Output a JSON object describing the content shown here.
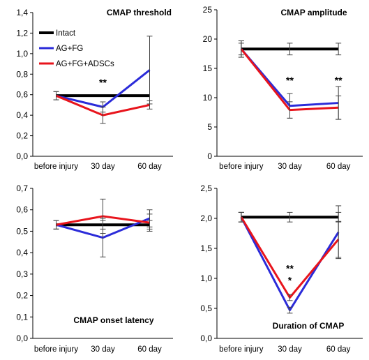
{
  "colors": {
    "Intact": "#000000",
    "AG+FG": "#2b2bd9",
    "AG+FG+ADSCs": "#e8141c"
  },
  "legend": [
    "Intact",
    "AG+FG",
    "AG+FG+ADSCs"
  ],
  "chart_data": [
    {
      "type": "line",
      "title": "CMAP threshold",
      "categories": [
        "before injury",
        "30 day",
        "60 day"
      ],
      "ylim": [
        0,
        1.4
      ],
      "yticks": [
        "0,0",
        "0,2",
        "0,4",
        "0,6",
        "0,8",
        "1,0",
        "1,2",
        "1,4"
      ],
      "series": [
        {
          "name": "Intact",
          "values": [
            0.59,
            0.59,
            0.59
          ],
          "err": [
            0.0,
            0.0,
            0.0
          ]
        },
        {
          "name": "AG+FG",
          "values": [
            0.59,
            0.48,
            0.84
          ],
          "err": [
            0.04,
            0.05,
            0.33
          ]
        },
        {
          "name": "AG+FG+ADSCs",
          "values": [
            0.59,
            0.4,
            0.5
          ],
          "err": [
            0.04,
            0.08,
            0.04
          ]
        }
      ],
      "annotations": [
        {
          "x": "30 day",
          "y": 0.72,
          "text": "**"
        }
      ],
      "legend_position": "top-left"
    },
    {
      "type": "line",
      "title": "CMAP amplitude",
      "categories": [
        "before injury",
        "30 day",
        "60 day"
      ],
      "ylim": [
        0,
        25
      ],
      "yticks": [
        "0",
        "5",
        "10",
        "15",
        "20",
        "25"
      ],
      "series": [
        {
          "name": "Intact",
          "values": [
            18.3,
            18.3,
            18.3
          ],
          "err": [
            1.0,
            1.0,
            1.0
          ]
        },
        {
          "name": "AG+FG",
          "values": [
            18.3,
            8.6,
            9.1
          ],
          "err": [
            1.4,
            2.1,
            2.8
          ]
        },
        {
          "name": "AG+FG+ADSCs",
          "values": [
            18.3,
            7.9,
            8.3
          ],
          "err": [
            1.4,
            1.4,
            2.0
          ]
        }
      ],
      "annotations": [
        {
          "x": "30 day",
          "y": 13.0,
          "text": "**"
        },
        {
          "x": "60 day",
          "y": 13.0,
          "text": "**"
        }
      ]
    },
    {
      "type": "line",
      "title": "CMAP onset latency",
      "categories": [
        "before injury",
        "30 day",
        "60 day"
      ],
      "ylim": [
        0,
        0.7
      ],
      "yticks": [
        "0,0",
        "0,1",
        "0,2",
        "0,3",
        "0,4",
        "0,5",
        "0,6",
        "0,7"
      ],
      "series": [
        {
          "name": "Intact",
          "values": [
            0.53,
            0.53,
            0.53
          ],
          "err": [
            0.02,
            0.02,
            0.02
          ]
        },
        {
          "name": "AG+FG",
          "values": [
            0.53,
            0.47,
            0.56
          ],
          "err": [
            0.02,
            0.09,
            0.04
          ]
        },
        {
          "name": "AG+FG+ADSCs",
          "values": [
            0.53,
            0.57,
            0.54
          ],
          "err": [
            0.02,
            0.08,
            0.04
          ]
        }
      ]
    },
    {
      "type": "line",
      "title": "Duration of CMAP",
      "categories": [
        "before injury",
        "30 day",
        "60 day"
      ],
      "ylim": [
        0,
        2.5
      ],
      "yticks": [
        "0,0",
        "0,5",
        "1,0",
        "1,5",
        "2,0",
        "2,5"
      ],
      "series": [
        {
          "name": "Intact",
          "values": [
            2.02,
            2.02,
            2.02
          ],
          "err": [
            0.08,
            0.08,
            0.08
          ]
        },
        {
          "name": "AG+FG",
          "values": [
            2.02,
            0.47,
            1.77
          ],
          "err": [
            0.08,
            0.05,
            0.44
          ]
        },
        {
          "name": "AG+FG+ADSCs",
          "values": [
            2.02,
            0.68,
            1.65
          ],
          "err": [
            0.08,
            0.05,
            0.3
          ]
        }
      ],
      "annotations": [
        {
          "x": "30 day",
          "y": 1.17,
          "text": "**"
        },
        {
          "x": "30 day",
          "y": 0.97,
          "text": "*"
        }
      ]
    }
  ]
}
